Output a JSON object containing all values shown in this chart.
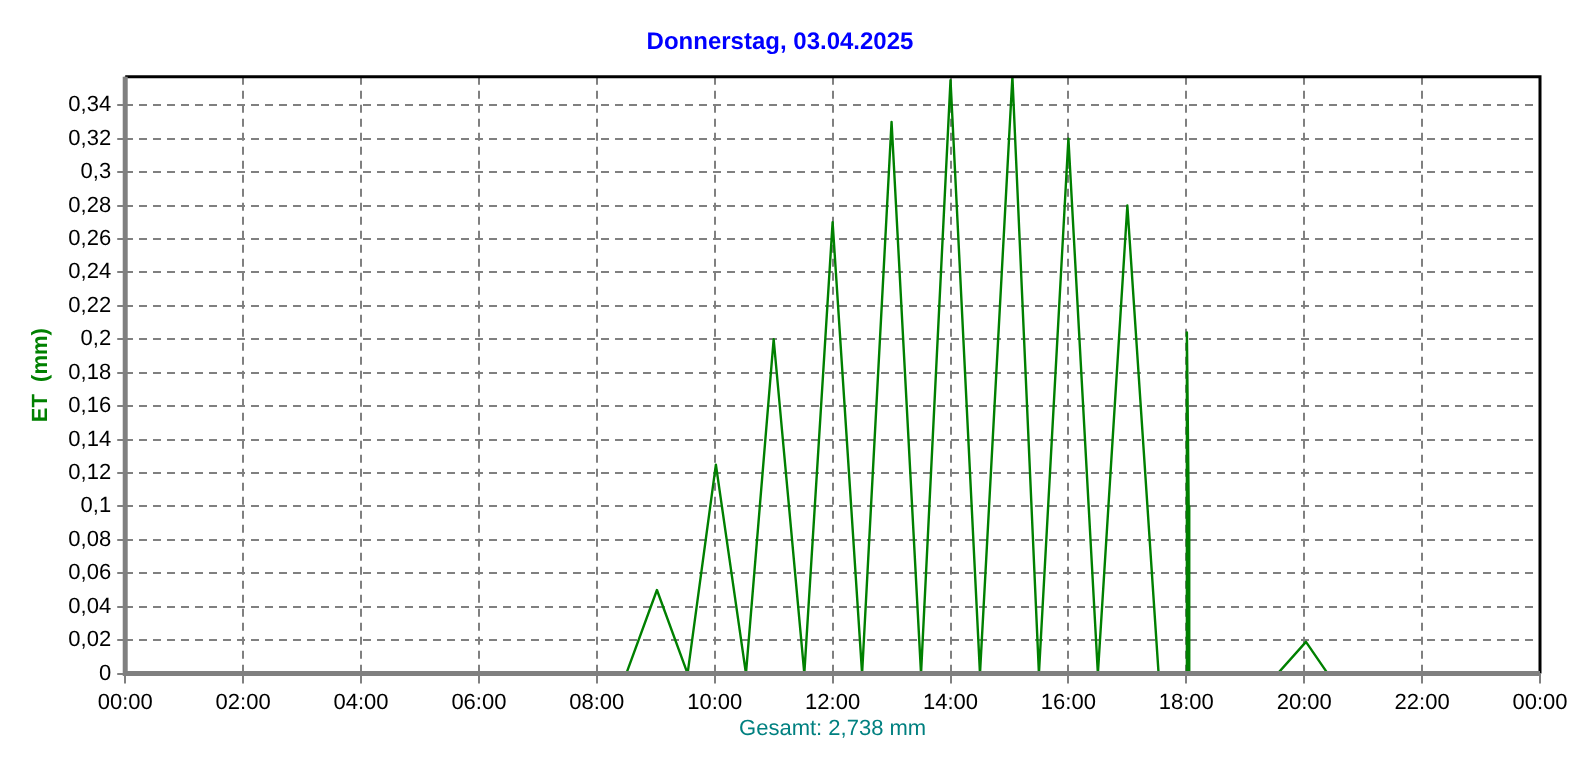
{
  "chart_data": {
    "type": "line",
    "title": "Donnerstag, 03.04.2025",
    "ylabel": "ET  (mm)",
    "annotations": [
      "Gesamt: 2,738 mm"
    ],
    "x": [
      0,
      8.5,
      9.02,
      9.54,
      10.02,
      10.53,
      11.0,
      11.52,
      12.0,
      12.5,
      13.0,
      13.5,
      14.0,
      14.5,
      15.05,
      15.5,
      16.0,
      16.5,
      17.0,
      17.53,
      18.0,
      18.01,
      18.04,
      18.05,
      19.55,
      20.03,
      20.4,
      24
    ],
    "series": [
      {
        "color": "#008000",
        "values": [
          0,
          0,
          0.05,
          0,
          0.125,
          0,
          0.2,
          0,
          0.27,
          0,
          0.33,
          0,
          0.355,
          0,
          0.357,
          0,
          0.32,
          0,
          0.28,
          0,
          0,
          0.204,
          0.1,
          0,
          0,
          0.019,
          0,
          0
        ]
      }
    ],
    "xlim": [
      0,
      24
    ],
    "xticks": [
      {
        "value": 0,
        "label": "00:00"
      },
      {
        "value": 2,
        "label": "02:00"
      },
      {
        "value": 4,
        "label": "04:00"
      },
      {
        "value": 6,
        "label": "06:00"
      },
      {
        "value": 8,
        "label": "08:00"
      },
      {
        "value": 10,
        "label": "10:00"
      },
      {
        "value": 12,
        "label": "12:00"
      },
      {
        "value": 14,
        "label": "14:00"
      },
      {
        "value": 16,
        "label": "16:00"
      },
      {
        "value": 18,
        "label": "18:00"
      },
      {
        "value": 20,
        "label": "20:00"
      },
      {
        "value": 22,
        "label": "22:00"
      },
      {
        "value": 24,
        "label": "00:00"
      }
    ],
    "ylim": [
      0,
      0.357
    ],
    "yticks": [
      0,
      {
        "value": 0.02,
        "label": "0,02"
      },
      {
        "value": 0.04,
        "label": "0,04"
      },
      {
        "value": 0.06,
        "label": "0,06"
      },
      {
        "value": 0.08,
        "label": "0,08"
      },
      {
        "value": 0.1,
        "label": "0,1"
      },
      {
        "value": 0.12,
        "label": "0,12"
      },
      {
        "value": 0.14,
        "label": "0,14"
      },
      {
        "value": 0.16,
        "label": "0,16"
      },
      {
        "value": 0.18,
        "label": "0,18"
      },
      {
        "value": 0.2,
        "label": "0,2"
      },
      {
        "value": 0.22,
        "label": "0,22"
      },
      {
        "value": 0.24,
        "label": "0,24"
      },
      {
        "value": 0.26,
        "label": "0,26"
      },
      {
        "value": 0.28,
        "label": "0,28"
      },
      {
        "value": 0.3,
        "label": "0,3"
      },
      {
        "value": 0.32,
        "label": "0,32"
      },
      {
        "value": 0.34,
        "label": "0,34"
      }
    ],
    "grid": true,
    "legend": false,
    "marker": "none",
    "line_style": "solid"
  }
}
